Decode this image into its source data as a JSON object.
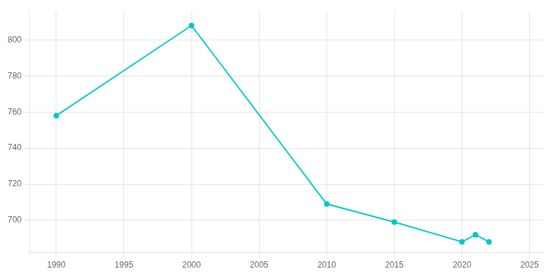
{
  "chart_data": {
    "type": "line",
    "x": [
      1990,
      2000,
      2010,
      2015,
      2020,
      2021,
      2022
    ],
    "values": [
      758,
      808,
      709,
      699,
      688,
      692,
      688
    ],
    "color": "#00C8C8",
    "marker": "circle",
    "xlim": [
      1988,
      2026
    ],
    "ylim": [
      682,
      816
    ],
    "xticks": [
      1990,
      1995,
      2000,
      2005,
      2010,
      2015,
      2020,
      2025
    ],
    "yticks": [
      700,
      720,
      740,
      760,
      780,
      800
    ],
    "grid": true
  }
}
